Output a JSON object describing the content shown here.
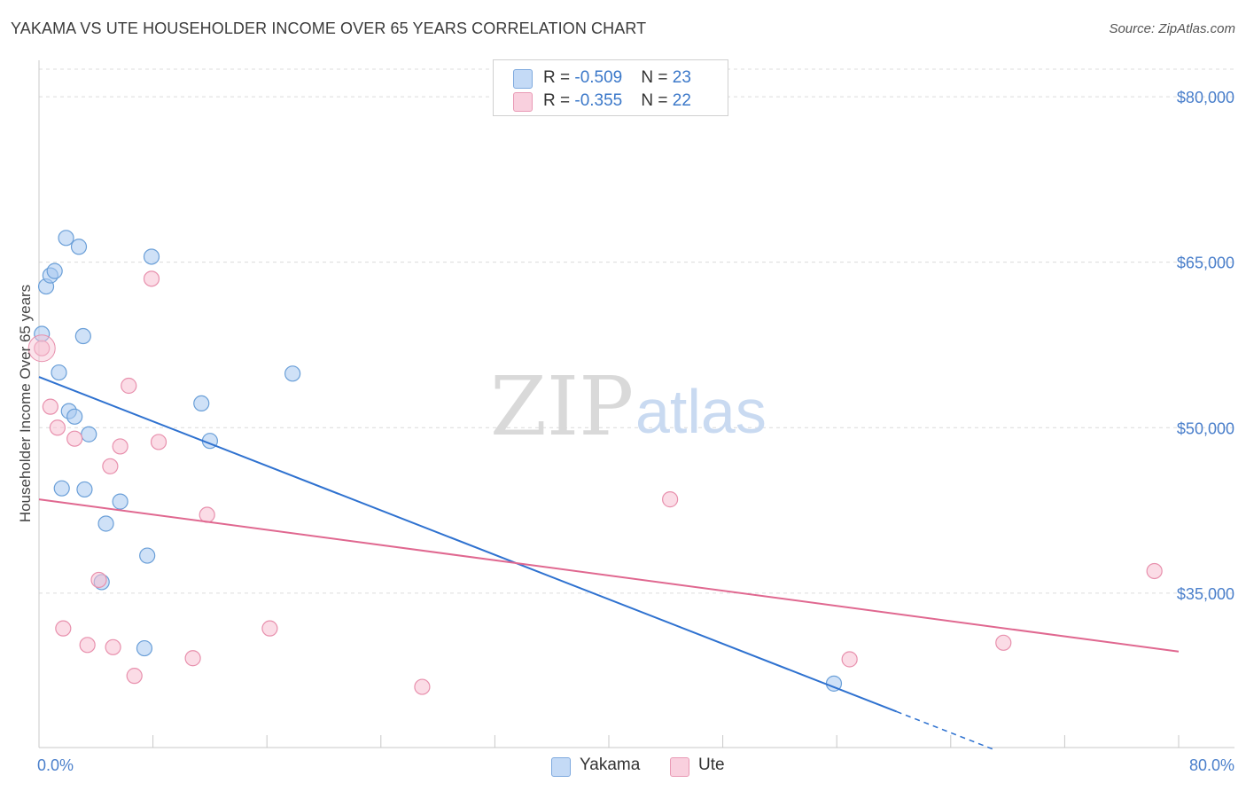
{
  "title": "YAKAMA VS UTE HOUSEHOLDER INCOME OVER 65 YEARS CORRELATION CHART",
  "source": "Source: ZipAtlas.com",
  "watermark": {
    "zip": "ZIP",
    "atlas": "atlas"
  },
  "legend": {
    "rows": [
      {
        "r_label": "R = ",
        "r_value": "-0.509",
        "n_label": "N = ",
        "n_value": "23"
      },
      {
        "r_label": "R = ",
        "r_value": "-0.355",
        "n_label": "N = ",
        "n_value": "22"
      }
    ]
  },
  "chart_data": {
    "type": "scatter",
    "title": "YAKAMA VS UTE HOUSEHOLDER INCOME OVER 65 YEARS CORRELATION CHART",
    "xlabel": "",
    "ylabel": "Householder Income Over 65 years",
    "xlim": [
      0,
      80
    ],
    "ylim": [
      21000,
      82500
    ],
    "x_tick_labels": [
      "0.0%",
      "80.0%"
    ],
    "y_ticks": [
      35000,
      50000,
      65000,
      80000
    ],
    "y_tick_labels": [
      "$35,000",
      "$50,000",
      "$65,000",
      "$80,000"
    ],
    "grid": true,
    "legend_position": "bottom-center",
    "series": [
      {
        "name": "Yakama",
        "color": "#a8c8f0",
        "edge_color": "#6a9fd8",
        "line_color": "#2f72d0",
        "points": [
          [
            0.2,
            58500
          ],
          [
            0.5,
            62800
          ],
          [
            0.8,
            63800
          ],
          [
            1.1,
            64200
          ],
          [
            1.4,
            55000
          ],
          [
            1.6,
            44500
          ],
          [
            1.9,
            67200
          ],
          [
            2.1,
            51500
          ],
          [
            2.5,
            51000
          ],
          [
            2.8,
            66400
          ],
          [
            3.1,
            58300
          ],
          [
            3.2,
            44400
          ],
          [
            3.5,
            49400
          ],
          [
            4.4,
            36000
          ],
          [
            4.7,
            41300
          ],
          [
            5.7,
            43300
          ],
          [
            7.4,
            30000
          ],
          [
            7.6,
            38400
          ],
          [
            7.9,
            65500
          ],
          [
            11.4,
            52200
          ],
          [
            12.0,
            48800
          ],
          [
            17.8,
            54900
          ],
          [
            55.8,
            26800
          ]
        ],
        "trend": {
          "x_start": 0,
          "y_start": 54600,
          "x_solid_end": 60.2,
          "x_end": 67.0,
          "slope_per_pct": -504
        }
      },
      {
        "name": "Ute",
        "color": "#f7c0d2",
        "edge_color": "#e890ad",
        "line_color": "#e06890",
        "points": [
          [
            0.2,
            57200
          ],
          [
            0.8,
            51900
          ],
          [
            1.3,
            50000
          ],
          [
            1.7,
            31800
          ],
          [
            2.5,
            49000
          ],
          [
            3.4,
            30300
          ],
          [
            4.2,
            36200
          ],
          [
            5.0,
            46500
          ],
          [
            5.2,
            30100
          ],
          [
            5.7,
            48300
          ],
          [
            6.3,
            53800
          ],
          [
            6.7,
            27500
          ],
          [
            7.9,
            63500
          ],
          [
            8.4,
            48700
          ],
          [
            10.8,
            29100
          ],
          [
            11.8,
            42100
          ],
          [
            16.2,
            31800
          ],
          [
            26.9,
            26500
          ],
          [
            44.3,
            43500
          ],
          [
            56.9,
            29000
          ],
          [
            67.7,
            30500
          ],
          [
            78.3,
            37000
          ]
        ],
        "trend": {
          "x_start": 0,
          "y_start": 43500,
          "x_end": 80.0,
          "y_end": 29700
        }
      }
    ]
  }
}
